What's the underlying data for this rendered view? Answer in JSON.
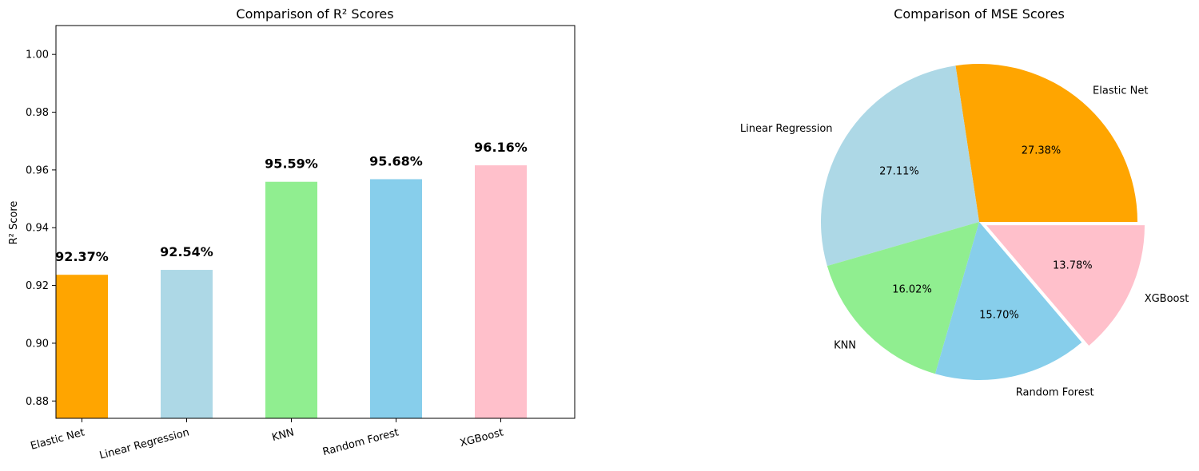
{
  "chart_data": [
    {
      "type": "bar",
      "title": "Comparison of R² Scores",
      "xlabel": "",
      "ylabel": "R² Score",
      "categories": [
        "Elastic Net",
        "Linear Regression",
        "KNN",
        "Random Forest",
        "XGBoost"
      ],
      "values": [
        0.9237,
        0.9254,
        0.9559,
        0.9568,
        0.9616
      ],
      "value_labels": [
        "92.37%",
        "92.54%",
        "95.59%",
        "95.68%",
        "96.16%"
      ],
      "colors": [
        "#FFA500",
        "#ADD8E6",
        "#90EE90",
        "#87CEEB",
        "#FFC0CB"
      ],
      "ylim": [
        0.874,
        1.01
      ],
      "yticks": [
        0.88,
        0.9,
        0.92,
        0.94,
        0.96,
        0.98,
        1.0
      ],
      "ytick_labels": [
        "0.88",
        "0.90",
        "0.92",
        "0.94",
        "0.96",
        "0.98",
        "1.00"
      ],
      "grid": false
    },
    {
      "type": "pie",
      "title": "Comparison of MSE Scores",
      "labels": [
        "Elastic Net",
        "Linear Regression",
        "KNN",
        "Random Forest",
        "XGBoost"
      ],
      "values": [
        27.38,
        27.11,
        16.02,
        15.7,
        13.78
      ],
      "value_labels": [
        "27.38%",
        "27.11%",
        "16.02%",
        "15.70%",
        "13.78%"
      ],
      "colors": [
        "#FFA500",
        "#ADD8E6",
        "#90EE90",
        "#87CEEB",
        "#FFC0CB"
      ],
      "explode": [
        0,
        0,
        0,
        0,
        0.05
      ]
    }
  ]
}
